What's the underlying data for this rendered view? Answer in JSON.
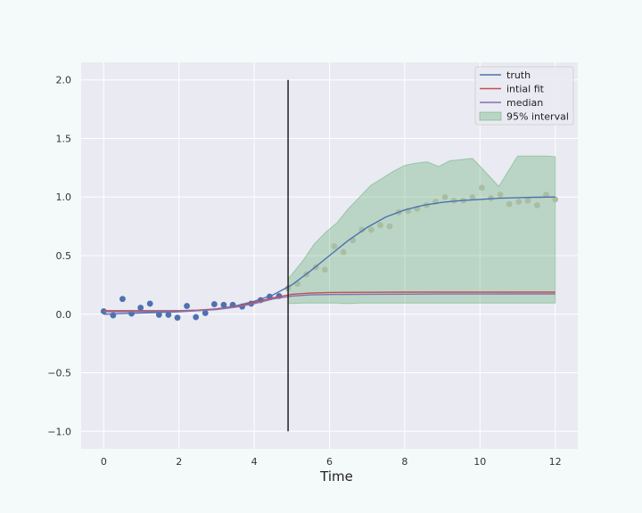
{
  "chart_data": {
    "type": "line",
    "title": "",
    "xlabel": "Time",
    "ylabel": "",
    "xlim": [
      -0.6,
      12.6
    ],
    "ylim": [
      -1.15,
      2.15
    ],
    "x_ticks": [
      0,
      2,
      4,
      6,
      8,
      10,
      12
    ],
    "y_ticks": [
      -1.0,
      -0.5,
      0.0,
      0.5,
      1.0,
      1.5,
      2.0
    ],
    "grid": true,
    "legend_position": "top-right",
    "colors": {
      "background": "#eaeaf2",
      "truth": "#4c72b0",
      "initial_fit": "#c44e52",
      "median": "#8172b2",
      "interval_fill": "#55a868",
      "observed_points": "#4c72b0",
      "forecast_points": "#a8bea3",
      "vline": "#222222"
    },
    "vertical_line": {
      "x": 4.9,
      "y_from": -1.0,
      "y_to": 2.0
    },
    "legend": [
      {
        "key": "truth",
        "label": "truth",
        "kind": "line"
      },
      {
        "key": "initial_fit",
        "label": "intial fit",
        "kind": "line"
      },
      {
        "key": "median",
        "label": "median",
        "kind": "line"
      },
      {
        "key": "interval_fill",
        "label": "95% interval",
        "kind": "patch"
      }
    ],
    "series": [
      {
        "name": "truth",
        "x": [
          0,
          0.5,
          1,
          1.5,
          2,
          2.5,
          3,
          3.5,
          4,
          4.5,
          5,
          5.5,
          6,
          6.5,
          7,
          7.5,
          8,
          8.5,
          9,
          9.5,
          10,
          10.5,
          11,
          11.5,
          12
        ],
        "y": [
          0.0,
          0.005,
          0.01,
          0.015,
          0.02,
          0.03,
          0.045,
          0.07,
          0.11,
          0.165,
          0.25,
          0.37,
          0.5,
          0.63,
          0.74,
          0.83,
          0.89,
          0.93,
          0.955,
          0.97,
          0.98,
          0.99,
          0.995,
          0.998,
          1.0
        ]
      },
      {
        "name": "intial fit",
        "x": [
          0,
          1,
          2,
          2.5,
          3,
          3.5,
          4,
          4.5,
          5,
          5.5,
          6,
          7,
          8,
          9,
          10,
          11,
          12
        ],
        "y": [
          0.03,
          0.03,
          0.03,
          0.035,
          0.045,
          0.065,
          0.1,
          0.14,
          0.17,
          0.18,
          0.185,
          0.187,
          0.188,
          0.188,
          0.188,
          0.188,
          0.188
        ]
      },
      {
        "name": "median",
        "x": [
          0,
          1,
          2,
          2.5,
          3,
          3.5,
          4,
          4.5,
          5,
          5.5,
          6,
          7,
          8,
          9,
          10,
          11,
          12
        ],
        "y": [
          0.02,
          0.022,
          0.025,
          0.03,
          0.04,
          0.06,
          0.09,
          0.13,
          0.155,
          0.165,
          0.168,
          0.17,
          0.171,
          0.172,
          0.172,
          0.173,
          0.173
        ]
      }
    ],
    "interval": {
      "name": "95% interval",
      "x": [
        4.9,
        5.3,
        5.6,
        5.9,
        6.2,
        6.5,
        6.8,
        7.1,
        7.4,
        7.7,
        8.0,
        8.3,
        8.6,
        8.9,
        9.2,
        9.5,
        9.8,
        10.1,
        10.5,
        11.0,
        11.5,
        11.8,
        12.0
      ],
      "upper": [
        0.3,
        0.46,
        0.6,
        0.7,
        0.78,
        0.9,
        1.0,
        1.1,
        1.16,
        1.22,
        1.27,
        1.29,
        1.3,
        1.26,
        1.31,
        1.32,
        1.33,
        1.23,
        1.09,
        1.35,
        1.35,
        1.35,
        1.345
      ],
      "lower": [
        0.09,
        0.095,
        0.095,
        0.095,
        0.095,
        0.09,
        0.095,
        0.095,
        0.095,
        0.095,
        0.095,
        0.095,
        0.095,
        0.095,
        0.095,
        0.095,
        0.095,
        0.095,
        0.095,
        0.095,
        0.095,
        0.095,
        0.095
      ]
    },
    "observations": {
      "x": [
        0,
        0.25,
        0.5,
        0.74,
        0.98,
        1.23,
        1.47,
        1.72,
        1.96,
        2.21,
        2.45,
        2.7,
        2.94,
        3.19,
        3.43,
        3.68,
        3.92,
        4.17,
        4.41,
        4.66
      ],
      "y": [
        0.025,
        -0.01,
        0.13,
        0.005,
        0.055,
        0.09,
        -0.005,
        -0.005,
        -0.03,
        0.07,
        -0.025,
        0.01,
        0.085,
        0.08,
        0.08,
        0.065,
        0.09,
        0.12,
        0.15,
        0.155
      ]
    },
    "forecast_observations": {
      "x": [
        4.9,
        5.15,
        5.39,
        5.64,
        5.88,
        6.13,
        6.37,
        6.62,
        6.86,
        7.11,
        7.35,
        7.6,
        7.84,
        8.09,
        8.33,
        8.58,
        8.82,
        9.07,
        9.31,
        9.56,
        9.8,
        10.05,
        10.29,
        10.54,
        10.78,
        11.03,
        11.27,
        11.52,
        11.76,
        12.0
      ],
      "y": [
        0.22,
        0.26,
        0.34,
        0.4,
        0.38,
        0.58,
        0.53,
        0.63,
        0.72,
        0.72,
        0.76,
        0.75,
        0.87,
        0.88,
        0.9,
        0.93,
        0.96,
        1.0,
        0.97,
        0.97,
        1.0,
        1.08,
        0.99,
        1.02,
        0.94,
        0.96,
        0.97,
        0.93,
        1.02,
        0.98
      ]
    }
  }
}
